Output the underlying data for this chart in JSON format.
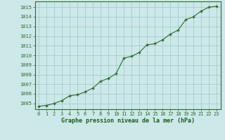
{
  "x": [
    0,
    1,
    2,
    3,
    4,
    5,
    6,
    7,
    8,
    9,
    10,
    11,
    12,
    13,
    14,
    15,
    16,
    17,
    18,
    19,
    20,
    21,
    22,
    23
  ],
  "y": [
    1004.7,
    1004.8,
    1005.0,
    1005.3,
    1005.8,
    1005.9,
    1006.2,
    1006.6,
    1007.3,
    1007.6,
    1008.1,
    1009.7,
    1009.9,
    1010.3,
    1011.1,
    1011.2,
    1011.6,
    1012.2,
    1012.6,
    1013.7,
    1014.0,
    1014.6,
    1015.0,
    1015.1
  ],
  "line_color": "#2d6a2d",
  "marker_color": "#2d6a2d",
  "bg_color": "#cce8e8",
  "plot_bg_color": "#cce8e8",
  "grid_color": "#a0c8c8",
  "xlabel": "Graphe pression niveau de la mer (hPa)",
  "xlabel_color": "#1a5c1a",
  "ylabel_ticks": [
    1005,
    1006,
    1007,
    1008,
    1009,
    1010,
    1011,
    1012,
    1013,
    1014,
    1015
  ],
  "ylim": [
    1004.4,
    1015.6
  ],
  "xlim": [
    -0.5,
    23.5
  ],
  "tick_color": "#2d6a2d",
  "spine_color": "#2d6a2d"
}
